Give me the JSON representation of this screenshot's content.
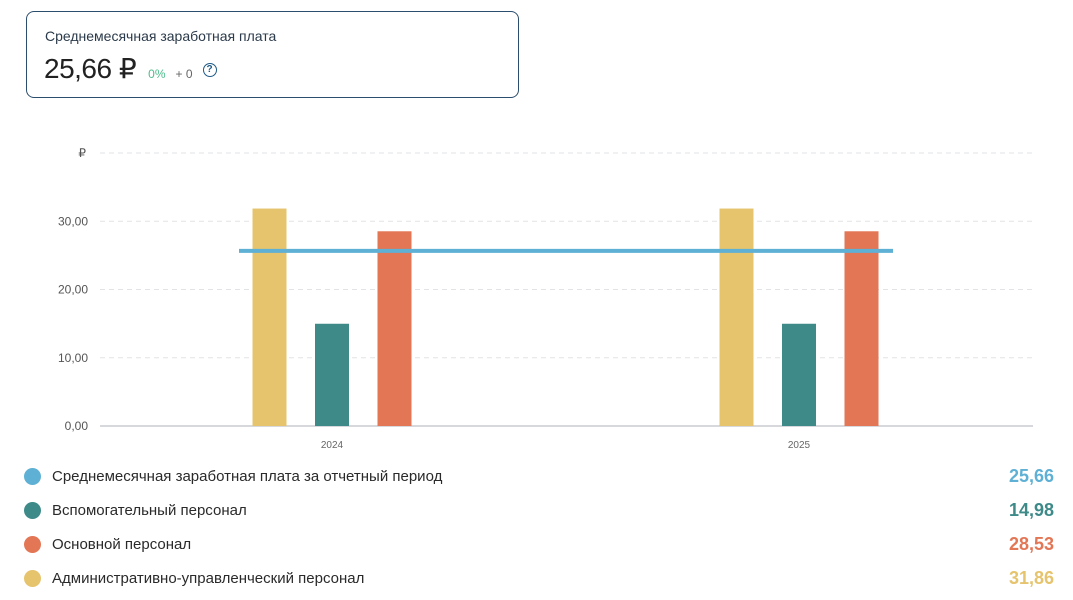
{
  "kpi": {
    "title": "Среднемесячная заработная плата",
    "value": "25,66 ₽",
    "change": "0%",
    "delta": "+ 0",
    "help_glyph": "?"
  },
  "chart_data": {
    "type": "bar",
    "categories": [
      "2024",
      "2025"
    ],
    "y_unit_label": "₽",
    "y_ticks": [
      "0,00",
      "10,00",
      "20,00",
      "30,00"
    ],
    "ylim": [
      0,
      40
    ],
    "grid": true,
    "series": [
      {
        "name": "Административно-управленческий персонал",
        "values": [
          31.86,
          31.86
        ],
        "color": "#e6c46e"
      },
      {
        "name": "Вспомогательный персонал",
        "values": [
          14.98,
          14.98
        ],
        "color": "#3d8a89"
      },
      {
        "name": "Основной персонал",
        "values": [
          28.53,
          28.53
        ],
        "color": "#e27655"
      }
    ],
    "reference_line": {
      "name": "Среднемесячная заработная плата за отчетный период",
      "value": 25.66,
      "color": "#5eb0d4"
    }
  },
  "legend": [
    {
      "label": "Среднемесячная заработная плата за отчетный период",
      "value": "25,66",
      "color": "#5eb0d4"
    },
    {
      "label": "Вспомогательный персонал",
      "value": "14,98",
      "color": "#3d8a89"
    },
    {
      "label": "Основной персонал",
      "value": "28,53",
      "color": "#e27655"
    },
    {
      "label": "Административно-управленческий персонал",
      "value": "31,86",
      "color": "#e6c46e"
    }
  ]
}
